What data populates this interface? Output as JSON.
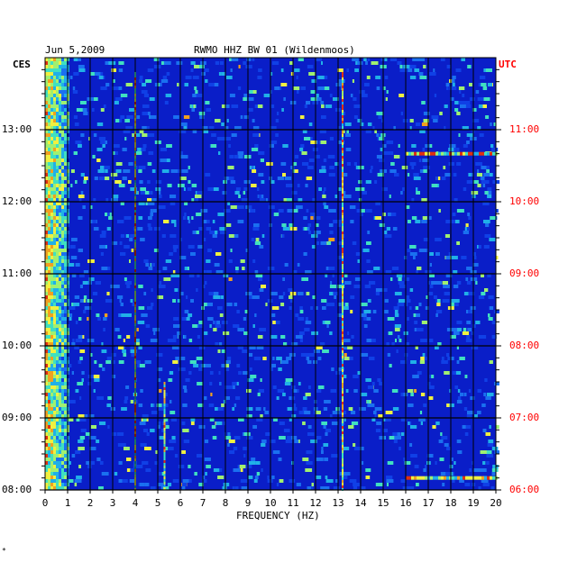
{
  "header": {
    "date": "Jun 5,2009",
    "station": "RWMO HHZ BW 01 (Wildenmoos)"
  },
  "axes": {
    "left_label": "CES",
    "right_label": "UTC",
    "xlabel": "FREQUENCY (HZ)"
  },
  "footer_mark": "*",
  "colors": {
    "background": "#0a1ec8",
    "left_axis_text": "#000000",
    "right_axis_text": "#ff0000"
  },
  "chart_data": {
    "type": "heatmap",
    "title": "RWMO HHZ BW 01 (Wildenmoos)",
    "xlabel": "FREQUENCY (HZ)",
    "xlim": [
      0,
      20
    ],
    "x_ticks": [
      "0",
      "1",
      "2",
      "3",
      "4",
      "5",
      "6",
      "7",
      "8",
      "9",
      "10",
      "11",
      "12",
      "13",
      "14",
      "15",
      "16",
      "17",
      "18",
      "19",
      "20"
    ],
    "left_time_ticks": [
      "13:00",
      "12:00",
      "11:00",
      "10:00",
      "09:00",
      "08:00"
    ],
    "right_time_ticks": [
      "11:00",
      "10:00",
      "09:00",
      "08:00",
      "07:00",
      "06:00"
    ],
    "time_range_ces": [
      "08:00",
      "13:48"
    ],
    "grid": true,
    "features": [
      {
        "kind": "band",
        "freq_range": [
          0.1,
          1.0
        ],
        "description": "strong low-frequency energy throughout"
      },
      {
        "kind": "line",
        "freq": 4.0,
        "time_range_ces": [
          "08:00",
          "13:48"
        ]
      },
      {
        "kind": "line",
        "freq": 5.3,
        "time_range_ces": [
          "08:00",
          "09:30"
        ]
      },
      {
        "kind": "line",
        "freq": 13.2,
        "time_range_ces": [
          "08:00",
          "13:48"
        ]
      },
      {
        "kind": "burst",
        "freq_range": [
          16,
          20
        ],
        "time_ces": "12:40"
      },
      {
        "kind": "burst",
        "freq_range": [
          16,
          20
        ],
        "time_ces": "08:10"
      }
    ]
  }
}
